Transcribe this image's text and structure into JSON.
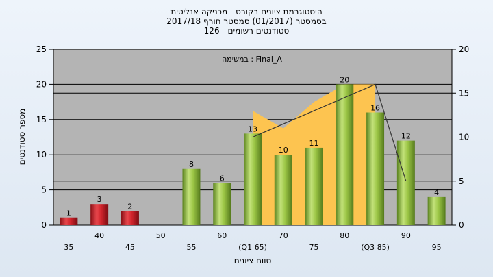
{
  "chart_data": {
    "type": "bar",
    "title_lines": [
      "היסטוגרמת ציונים בקורס - מכניקה אנליטית",
      "בסמסטר  (01/2017)  סמסטר חורף 2017/18",
      "סטודנטים רשומים - 126"
    ],
    "annotation": "במשימה : Final_A",
    "xlabel": "טווח ציונים",
    "ylabel": "מספר סטודנטים",
    "categories": [
      "35",
      "40",
      "45",
      "50",
      "55",
      "60",
      "(Q1 65)",
      "70",
      "75",
      "80",
      "(Q3 85)",
      "90",
      "95"
    ],
    "series": [
      {
        "values": [
          1,
          3,
          2,
          0,
          8,
          6,
          13,
          10,
          11,
          20,
          16,
          12,
          4
        ],
        "colors": [
          "red",
          "red",
          "red",
          "red",
          "green",
          "green",
          "green",
          "green",
          "green",
          "green",
          "green",
          "green",
          "green"
        ]
      }
    ],
    "area_series": {
      "values": [
        null,
        null,
        null,
        null,
        null,
        null,
        13,
        11,
        14,
        16,
        16,
        null,
        null
      ]
    },
    "line_series": {
      "values": [
        null,
        null,
        null,
        null,
        null,
        null,
        10,
        null,
        null,
        null,
        16,
        5,
        null
      ]
    },
    "ylim_left": [
      0,
      25
    ],
    "yticks_left": [
      0,
      5,
      10,
      15,
      20,
      25
    ],
    "ylim_right": [
      0,
      20
    ],
    "yticks_right": [
      0,
      5,
      10,
      15,
      20
    ],
    "grid": true,
    "colors": {
      "plot_bg": "#b4b4b4",
      "area": "#fdc450",
      "bar_red": "#d0242c",
      "bar_green": "#9cc646",
      "line": "#333333"
    }
  }
}
